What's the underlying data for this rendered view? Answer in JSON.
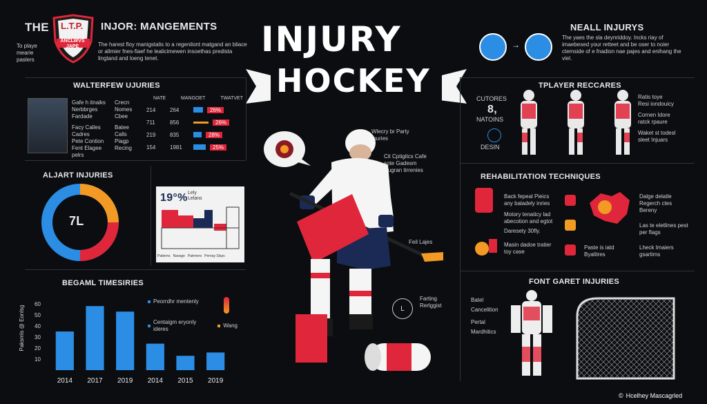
{
  "header": {
    "left_title_pre": "THE",
    "shield_text_top": "L.T.P.",
    "shield_text_bottom": "ANCLWVS JAPE",
    "left_title_post": "INJOR: MANGEMENTS",
    "left_side_note": "To playe mearie paslers",
    "left_desc": "The harest floy manigstalis to a regenilont matgand an bliace or allmier fnes-fiaef he lealicimewen insoethas predista lingtand and loeng tenet.",
    "main_title_1": "INJURY",
    "main_title_2": "HOCKEY",
    "right_title": "NEALL INJURYS",
    "right_desc": "The yaes the sla deynriddoy. Incks riay of imaebesed your retteet and be oser to noier ctemside of e fnadion nae pajes and enihang the viel."
  },
  "waltfew": {
    "title": "WALTERFEW UJURIES",
    "desc": [
      "Gafe h itnaiks",
      "Nerbbrges",
      "Fardade",
      "Facy Calles",
      "Cadres",
      "Pete Contion",
      "Fent Elagee",
      "pelrs"
    ],
    "col2": [
      "Crecn",
      "Nomes",
      "Cbee",
      "Batee",
      "Calls",
      "Piagp",
      "Recing"
    ],
    "headers": [
      "NATE",
      "MANGOET",
      "TWATVET"
    ],
    "rows": [
      {
        "a": "214",
        "b": "264",
        "c": "26%"
      },
      {
        "a": "711",
        "b": "856",
        "c": "26%"
      },
      {
        "a": "219",
        "b": "835",
        "c": "28%"
      },
      {
        "a": "154",
        "b": "1981",
        "c": "25%"
      }
    ]
  },
  "aljart": {
    "title": "ALJART INJURIES",
    "center": "7L"
  },
  "bars_small": {
    "label": "19°%",
    "label2": "Lefy",
    "label3": "Lelans",
    "top_note": "Lely Lelans",
    "legend": [
      "Patterns",
      "Navage",
      "Patrmers",
      "Pernay Slays"
    ]
  },
  "timeseries": {
    "title": "BEGAML TIMESIRIES",
    "ylabel": "Paksmls @ Eonlsg",
    "yticks": [
      "60",
      "50",
      "40",
      "30",
      "20",
      "10"
    ],
    "legend1": "Peorrdhr mentenly",
    "legend2": "Centaigm eryonly ideres",
    "legend3": "Wang"
  },
  "chart_data": {
    "type": "bar",
    "categories": [
      "2014",
      "2017",
      "2019",
      "2014",
      "2015",
      "2019"
    ],
    "values": [
      35,
      58,
      53,
      24,
      13,
      16
    ],
    "ylim": [
      0,
      60
    ],
    "title": "BEGAML TIMESIRIES",
    "ylabel": "Paksmls @ Eonlsg"
  },
  "center": {
    "bubble_label": "Wlecry br Party Inuries",
    "note1": "Cit Cptigitcs Cafe sote Gadesm Dugran tirrenies",
    "note2": "Feil Lajes",
    "note3": "Farting Rerlggist",
    "clock_letter": "L"
  },
  "player": {
    "title": "TPLAYER RECCARES",
    "left_text": "CUTORES",
    "left_num": "8,",
    "left_text2": "NATOINS",
    "left_text3": "DESIN",
    "right_lines": [
      "Ratis toye",
      "Resi iondouicy",
      "Cornen Idore",
      "ratck rpaure",
      "Waket st todesl",
      "sleet Injuars"
    ]
  },
  "rehab": {
    "title": "REHABILITATION TECHNIQUES",
    "items": [
      "Back fepeal Pieics any baladely inries",
      "Motory tenaticy lad abecotion and egtot",
      "Daresety 30fly.",
      "Masin dadoe tratier toy case",
      "Paste is iatd Byalitres"
    ],
    "right_items": [
      "Dalge delatle Regerch ctes Bereny",
      "Las te eletlines pest per flags",
      "Lheck Imaiers gsartims"
    ]
  },
  "fontcaret": {
    "title": "FONT GARET INJURIES",
    "list": [
      "Batel",
      "Cancelition",
      "Pertal",
      "Mardhitics"
    ]
  },
  "footer": {
    "credit": "Hcelhey Mascagrled"
  },
  "colors": {
    "red": "#e0263a",
    "blue": "#2b8de4",
    "orange": "#f29a23",
    "bg": "#0b0d10"
  }
}
